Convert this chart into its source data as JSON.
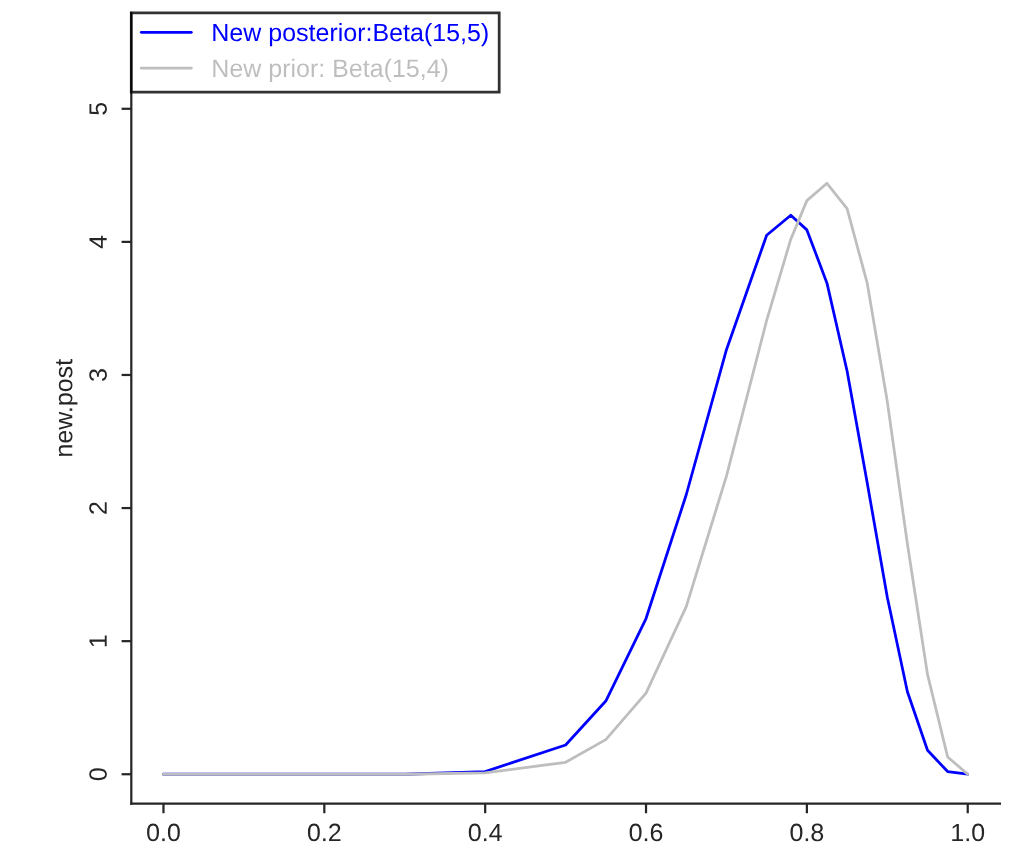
{
  "chart_data": {
    "type": "line",
    "ylabel": "new.post",
    "xlim": [
      -0.04,
      1.04
    ],
    "ylim": [
      -0.22,
      5.72
    ],
    "xticks": [
      {
        "value": 0,
        "label": "0.0"
      },
      0.2,
      0.4,
      0.6,
      0.8,
      {
        "value": 1,
        "label": "1.0"
      }
    ],
    "yticks": [
      0,
      1,
      2,
      3,
      4,
      5
    ],
    "grid": false,
    "legend": "top left",
    "marker": "none",
    "line_style": "solid",
    "x": [
      0,
      0.2,
      0.3,
      0.4,
      0.5,
      0.55,
      0.6,
      0.65,
      0.7,
      0.75,
      0.78,
      0.8,
      0.825,
      0.85,
      0.875,
      0.9,
      0.925,
      0.95,
      0.975,
      1
    ],
    "series": [
      {
        "name": "New posterior:Beta(15,5)",
        "color": "#0000ff",
        "values": [
          0,
          0,
          0,
          0.02,
          0.22,
          0.55,
          1.17,
          2.1,
          3.19,
          4.05,
          4.2,
          4.09,
          3.69,
          3.03,
          2.19,
          1.33,
          0.62,
          0.18,
          0.02,
          0
        ]
      },
      {
        "name": "New prior: Beta(15,4)",
        "color": "#bebebe",
        "values": [
          0,
          0,
          0,
          0.01,
          0.09,
          0.26,
          0.61,
          1.26,
          2.24,
          3.41,
          4.02,
          4.31,
          4.44,
          4.25,
          3.69,
          2.8,
          1.73,
          0.75,
          0.13,
          0
        ]
      }
    ]
  }
}
